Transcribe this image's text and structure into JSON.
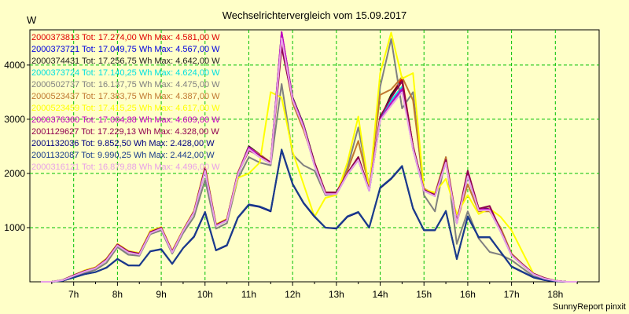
{
  "chart_data": {
    "type": "line",
    "title": "Wechselrichtervergleich vom 15.09.2017",
    "ylabel": "W",
    "footer": "SunnyReport pinxit",
    "xlim": [
      6.0,
      19.0
    ],
    "ylim": [
      0,
      4650
    ],
    "x_ticks": [
      7,
      8,
      9,
      10,
      11,
      12,
      13,
      14,
      15,
      16,
      17,
      18
    ],
    "x_tick_labels": [
      "7h",
      "8h",
      "9h",
      "10h",
      "11h",
      "12h",
      "13h",
      "14h",
      "15h",
      "16h",
      "17h",
      "18h"
    ],
    "y_ticks": [
      1000,
      2000,
      3000,
      4000
    ],
    "y_tick_labels": [
      "1000",
      "2000",
      "3000",
      "4000"
    ],
    "grid": true,
    "legend_position": "top-left",
    "x": [
      6.25,
      6.5,
      6.75,
      7.0,
      7.25,
      7.5,
      7.75,
      8.0,
      8.25,
      8.5,
      8.75,
      9.0,
      9.25,
      9.5,
      9.75,
      10.0,
      10.25,
      10.5,
      10.75,
      11.0,
      11.25,
      11.5,
      11.75,
      12.0,
      12.25,
      12.5,
      12.75,
      13.0,
      13.25,
      13.5,
      13.75,
      14.0,
      14.25,
      14.5,
      14.75,
      15.0,
      15.25,
      15.5,
      15.75,
      16.0,
      16.25,
      16.5,
      16.75,
      17.0,
      17.25,
      17.5,
      17.75,
      18.0,
      18.25,
      18.5
    ],
    "series": [
      {
        "name": "2000373813 Tot: 17.274,00 Wh Max: 4.581,00 W",
        "color": "#e00000",
        "values": [
          0,
          0,
          30,
          120,
          200,
          260,
          420,
          690,
          560,
          520,
          920,
          1000,
          560,
          950,
          1300,
          2100,
          1050,
          1150,
          2000,
          2500,
          2350,
          2200,
          4550,
          3400,
          2900,
          2200,
          1650,
          1650,
          2000,
          2300,
          1700,
          3000,
          3450,
          3750,
          2500,
          1700,
          1600,
          2250,
          1100,
          2000,
          1350,
          1350,
          950,
          500,
          320,
          150,
          70,
          20,
          0,
          0
        ]
      },
      {
        "name": "2000373721 Tot: 17.049,75 Wh Max: 4.567,00 W",
        "color": "#0000e0",
        "values": [
          0,
          0,
          30,
          110,
          190,
          250,
          400,
          670,
          540,
          500,
          900,
          980,
          540,
          940,
          1280,
          2050,
          1030,
          1130,
          1980,
          2450,
          2300,
          2180,
          4530,
          3350,
          2850,
          2150,
          1620,
          1620,
          1980,
          2250,
          1680,
          2980,
          3300,
          3550,
          2450,
          1680,
          1580,
          2200,
          1080,
          1950,
          1320,
          1320,
          930,
          490,
          310,
          140,
          60,
          20,
          0,
          0
        ]
      },
      {
        "name": "2000374431 Tot: 17.256,75 Wh Max: 4.642,00 W",
        "color": "#202020",
        "values": [
          0,
          0,
          35,
          120,
          200,
          265,
          420,
          690,
          560,
          520,
          920,
          1000,
          560,
          950,
          1300,
          2100,
          1050,
          1150,
          2000,
          2500,
          2350,
          2200,
          4600,
          3400,
          2900,
          2200,
          1650,
          1650,
          2000,
          2300,
          1700,
          3000,
          3450,
          3700,
          2500,
          1700,
          1600,
          2250,
          1100,
          2000,
          1350,
          1350,
          950,
          500,
          320,
          150,
          70,
          20,
          0,
          0
        ]
      },
      {
        "name": "2000373724 Tot: 17.140,25 Wh Max: 4.624,00 W",
        "color": "#00e0e0",
        "values": [
          0,
          0,
          30,
          115,
          195,
          255,
          410,
          680,
          550,
          510,
          910,
          990,
          550,
          945,
          1290,
          2080,
          1040,
          1140,
          1990,
          2480,
          2330,
          2190,
          4580,
          3380,
          2880,
          2180,
          1640,
          1640,
          1990,
          2280,
          1690,
          2990,
          3350,
          3600,
          2480,
          1690,
          1590,
          2230,
          1090,
          1980,
          1340,
          1340,
          940,
          495,
          315,
          145,
          65,
          20,
          0,
          0
        ]
      },
      {
        "name": "2000502737 Tot: 16.137,75 Wh Max: 4.475,00 W",
        "color": "#808080",
        "values": [
          0,
          0,
          20,
          80,
          160,
          220,
          350,
          640,
          500,
          480,
          880,
          950,
          520,
          900,
          1200,
          1880,
          980,
          1080,
          1900,
          2300,
          2200,
          2150,
          3650,
          2350,
          2150,
          2050,
          1600,
          1620,
          2100,
          2850,
          1750,
          3600,
          4480,
          3200,
          3500,
          1600,
          1300,
          2300,
          700,
          1300,
          800,
          550,
          500,
          400,
          250,
          100,
          50,
          10,
          0,
          0
        ]
      },
      {
        "name": "2000523437 Tot: 17.383,75 Wh Max: 4.387,00 W",
        "color": "#c07830",
        "values": [
          0,
          0,
          30,
          120,
          210,
          270,
          430,
          700,
          570,
          530,
          940,
          1010,
          570,
          960,
          1310,
          2120,
          1060,
          1160,
          2010,
          2480,
          2350,
          2200,
          4400,
          3300,
          2800,
          2200,
          1650,
          1650,
          2050,
          2600,
          1750,
          3450,
          3550,
          3780,
          3350,
          1720,
          1620,
          2300,
          1100,
          1800,
          1300,
          1300,
          1000,
          520,
          330,
          150,
          70,
          20,
          0,
          0
        ]
      },
      {
        "name": "2000523459 Tot: 17.415,25 Wh Max: 4.617,00 W",
        "color": "#ffff00",
        "values": [
          0,
          0,
          30,
          120,
          210,
          270,
          430,
          700,
          570,
          530,
          940,
          1010,
          570,
          960,
          1310,
          2120,
          1060,
          1160,
          1920,
          2000,
          2200,
          3500,
          3400,
          2400,
          1800,
          1200,
          1550,
          1600,
          2200,
          3050,
          1700,
          3850,
          4600,
          3750,
          3850,
          1700,
          1650,
          1900,
          1250,
          1600,
          1250,
          1350,
          1200,
          950,
          550,
          150,
          70,
          20,
          0,
          0
        ]
      },
      {
        "name": "2000376360 Tot: 17.064,88 Wh Max: 4.609,00 W",
        "color": "#c000c0",
        "values": [
          0,
          0,
          30,
          115,
          195,
          255,
          410,
          680,
          550,
          510,
          910,
          990,
          550,
          945,
          1290,
          2080,
          1040,
          1140,
          1990,
          2480,
          2330,
          2190,
          4609,
          3380,
          2880,
          2180,
          1640,
          1640,
          1990,
          2280,
          1690,
          2990,
          3300,
          3560,
          2480,
          1690,
          1590,
          2230,
          1090,
          1980,
          1340,
          1340,
          940,
          495,
          315,
          145,
          65,
          20,
          0,
          0
        ]
      },
      {
        "name": "2001129627 Tot: 17.229,13 Wh Max: 4.328,00 W",
        "color": "#900050",
        "values": [
          0,
          0,
          30,
          120,
          200,
          260,
          420,
          690,
          560,
          520,
          920,
          1000,
          560,
          950,
          1300,
          2100,
          1050,
          1150,
          2000,
          2420,
          2330,
          2200,
          4328,
          3350,
          2850,
          2200,
          1650,
          1650,
          2000,
          2300,
          1700,
          3050,
          3400,
          3700,
          2500,
          1700,
          1600,
          2250,
          1100,
          2050,
          1350,
          1400,
          950,
          500,
          320,
          150,
          70,
          20,
          0,
          0
        ]
      },
      {
        "name": "2001132036 Tot: 9.852,50 Wh Max: 2.428,00 W",
        "color": "#000080",
        "values": [
          0,
          0,
          20,
          80,
          140,
          180,
          260,
          420,
          300,
          300,
          560,
          600,
          330,
          620,
          830,
          1280,
          580,
          670,
          1180,
          1420,
          1380,
          1300,
          2428,
          1800,
          1450,
          1200,
          1000,
          980,
          1200,
          1280,
          1000,
          1730,
          1900,
          2130,
          1350,
          950,
          950,
          1300,
          420,
          1200,
          820,
          820,
          550,
          280,
          180,
          80,
          30,
          10,
          0,
          0
        ]
      },
      {
        "name": "2001132087 Tot: 9.990,25 Wh Max: 2.442,00 W",
        "color": "#1a3c8c",
        "values": [
          0,
          0,
          20,
          80,
          140,
          180,
          265,
          425,
          305,
          300,
          565,
          605,
          335,
          625,
          840,
          1290,
          585,
          680,
          1190,
          1430,
          1390,
          1310,
          2442,
          1810,
          1460,
          1210,
          1000,
          990,
          1210,
          1290,
          1005,
          1740,
          1910,
          2140,
          1360,
          955,
          955,
          1310,
          425,
          1210,
          825,
          825,
          555,
          285,
          185,
          85,
          35,
          10,
          0,
          0
        ]
      },
      {
        "name": "2000316121 Tot: 16.879,88 Wh Max: 4.496,00 W",
        "color": "#e8a0e8",
        "values": [
          0,
          0,
          30,
          110,
          190,
          250,
          400,
          670,
          540,
          500,
          900,
          980,
          540,
          940,
          1280,
          2050,
          1030,
          1130,
          1980,
          2450,
          2300,
          2180,
          4496,
          3350,
          2850,
          2150,
          1620,
          1620,
          1980,
          2250,
          1680,
          2980,
          3250,
          3500,
          2450,
          1680,
          1580,
          2200,
          1080,
          1950,
          1320,
          1320,
          930,
          490,
          310,
          140,
          60,
          20,
          0,
          0
        ]
      }
    ]
  }
}
